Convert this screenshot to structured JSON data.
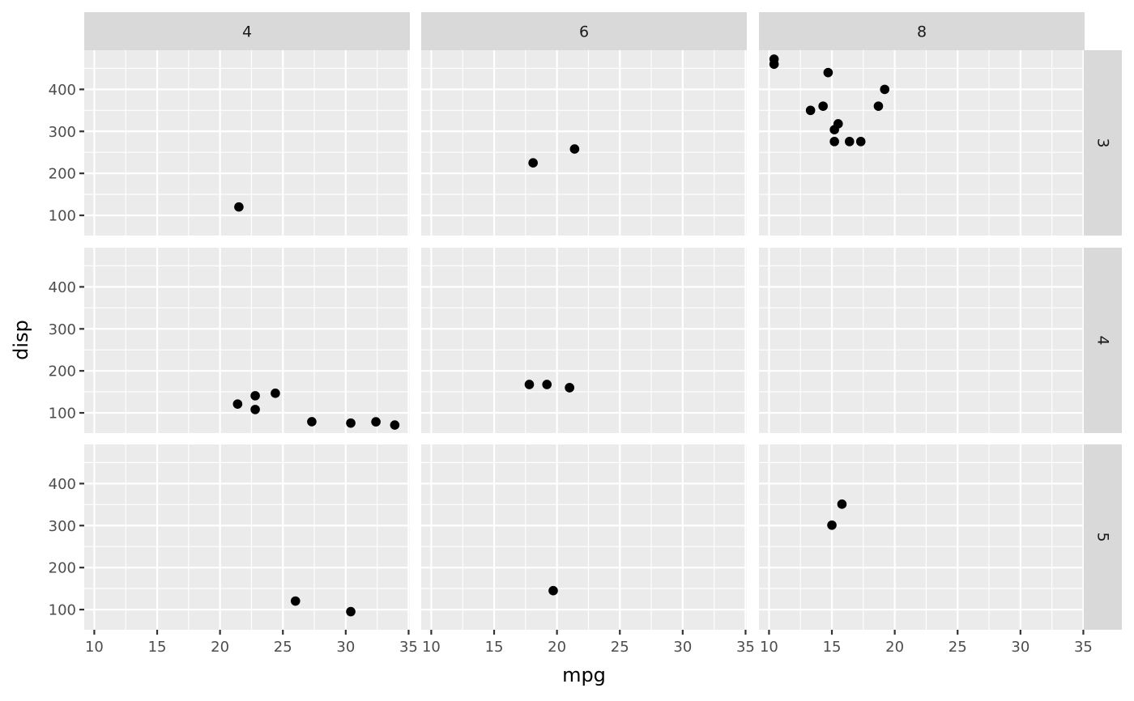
{
  "chart_data": {
    "type": "scatter",
    "xlabel": "mpg",
    "ylabel": "disp",
    "xlim": [
      9.2,
      35.1
    ],
    "ylim": [
      51.9,
      493.3
    ],
    "x_ticks": [
      10,
      15,
      20,
      25,
      30,
      35
    ],
    "y_ticks": [
      100,
      200,
      300,
      400
    ],
    "grid": true,
    "facet_cols": [
      "4",
      "6",
      "8"
    ],
    "facet_rows": [
      "3",
      "4",
      "5"
    ],
    "panels": [
      {
        "col": "4",
        "row": "3",
        "points": [
          [
            21.5,
            120.1
          ]
        ]
      },
      {
        "col": "6",
        "row": "3",
        "points": [
          [
            21.4,
            258
          ],
          [
            18.1,
            225
          ]
        ]
      },
      {
        "col": "8",
        "row": "3",
        "points": [
          [
            18.7,
            360
          ],
          [
            14.3,
            360
          ],
          [
            16.4,
            275.8
          ],
          [
            17.3,
            275.8
          ],
          [
            15.2,
            275.8
          ],
          [
            10.4,
            472
          ],
          [
            10.4,
            460
          ],
          [
            14.7,
            440
          ],
          [
            15.5,
            318
          ],
          [
            15.2,
            304
          ],
          [
            13.3,
            350
          ],
          [
            19.2,
            400
          ]
        ]
      },
      {
        "col": "4",
        "row": "4",
        "points": [
          [
            22.8,
            108
          ],
          [
            24.4,
            146.7
          ],
          [
            22.8,
            140.8
          ],
          [
            32.4,
            78.7
          ],
          [
            30.4,
            75.7
          ],
          [
            33.9,
            71.1
          ],
          [
            27.3,
            79
          ],
          [
            21.4,
            121
          ]
        ]
      },
      {
        "col": "6",
        "row": "4",
        "points": [
          [
            21,
            160
          ],
          [
            21,
            160
          ],
          [
            19.2,
            167.6
          ],
          [
            17.8,
            167.6
          ]
        ]
      },
      {
        "col": "8",
        "row": "4",
        "points": []
      },
      {
        "col": "4",
        "row": "5",
        "points": [
          [
            26,
            120.3
          ],
          [
            30.4,
            95.1
          ]
        ]
      },
      {
        "col": "6",
        "row": "5",
        "points": [
          [
            19.7,
            145
          ]
        ]
      },
      {
        "col": "8",
        "row": "5",
        "points": [
          [
            15.8,
            351
          ],
          [
            15,
            301
          ]
        ]
      }
    ]
  }
}
